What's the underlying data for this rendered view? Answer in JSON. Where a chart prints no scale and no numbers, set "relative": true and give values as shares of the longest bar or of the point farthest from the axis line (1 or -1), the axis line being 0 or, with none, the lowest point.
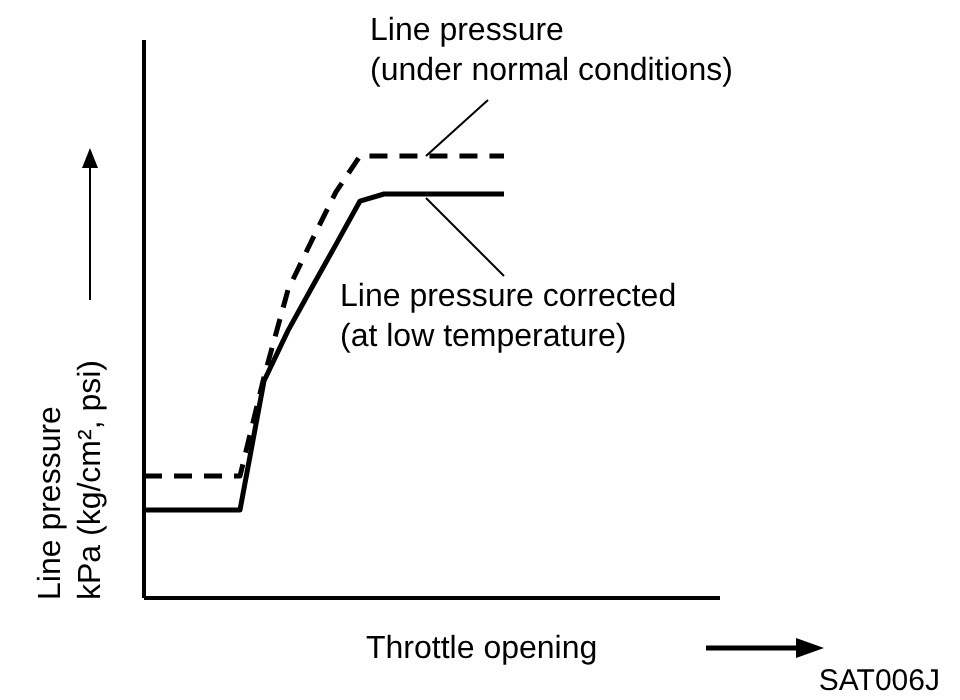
{
  "chart_data": {
    "type": "line",
    "relative": true,
    "xlabel": "Throttle opening",
    "ylabel": "Line pressure\nkPa (kg/cm², psi)",
    "annotations": [
      "SAT006J"
    ],
    "categories": [
      null,
      null,
      null,
      null,
      null,
      null,
      null,
      null,
      null,
      null,
      null,
      null,
      null,
      null,
      null,
      null,
      null,
      null,
      null,
      null,
      null,
      null,
      null,
      null,
      null
    ],
    "series": [
      {
        "name": "Line pressure\n(under normal conditions)",
        "color": "#000000",
        "line_style": "dashed",
        "values": [
          0.276,
          0.276,
          0.276,
          0.276,
          0.276,
          0.5,
          0.697,
          0.81,
          0.919,
          1,
          1,
          1,
          1,
          1,
          1,
          1,
          null,
          null,
          null,
          null,
          null,
          null,
          null,
          null,
          null
        ]
      },
      {
        "name": "Line pressure corrected\n(at low temperature)",
        "color": "#000000",
        "line_style": "solid",
        "values": [
          0.199,
          0.199,
          0.199,
          0.199,
          0.199,
          0.491,
          0.605,
          0.703,
          0.8,
          0.898,
          0.914,
          0.914,
          0.914,
          0.914,
          0.914,
          0.914,
          null,
          null,
          null,
          null,
          null,
          null,
          null,
          null,
          null
        ]
      }
    ]
  }
}
